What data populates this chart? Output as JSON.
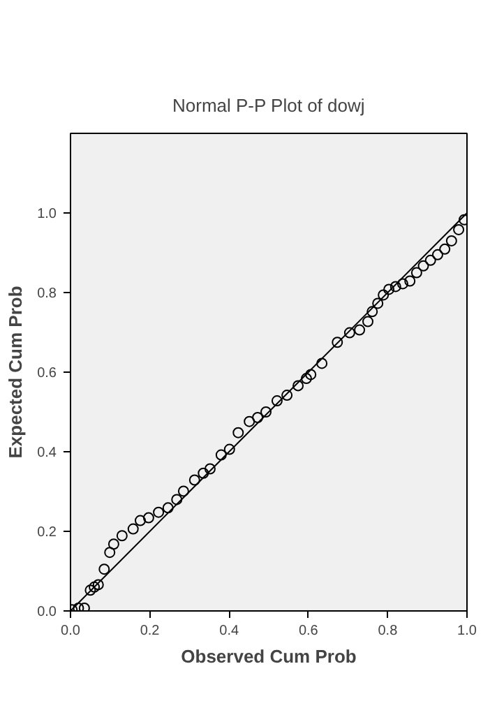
{
  "chart_data": {
    "type": "scatter",
    "title": "Normal P-P Plot of dowj",
    "xlabel": "Observed Cum Prob",
    "ylabel": "Expected Cum Prob",
    "xlim": [
      0,
      1
    ],
    "ylim": [
      0,
      1.2
    ],
    "xticks": [
      {
        "value": 0,
        "label": "0.0"
      },
      {
        "value": 0.2,
        "label": "0.2"
      },
      {
        "value": 0.4,
        "label": "0.4"
      },
      {
        "value": 0.6,
        "label": "0.6"
      },
      {
        "value": 0.8,
        "label": "0.8"
      },
      {
        "value": 1,
        "label": "1.0"
      }
    ],
    "yticks": [
      {
        "value": 0,
        "label": "0.0"
      },
      {
        "value": 0.2,
        "label": "0.2"
      },
      {
        "value": 0.4,
        "label": "0.4"
      },
      {
        "value": 0.6,
        "label": "0.6"
      },
      {
        "value": 0.8,
        "label": "0.8"
      },
      {
        "value": 1,
        "label": "1.0"
      }
    ],
    "grid": false,
    "series": [
      {
        "color": "#000000",
        "marker": "circle",
        "x": [
          0.004,
          0.02,
          0.035,
          0.05,
          0.06,
          0.07,
          0.085,
          0.099,
          0.109,
          0.13,
          0.158,
          0.176,
          0.197,
          0.222,
          0.246,
          0.268,
          0.285,
          0.313,
          0.335,
          0.352,
          0.38,
          0.401,
          0.423,
          0.451,
          0.472,
          0.493,
          0.521,
          0.546,
          0.574,
          0.595,
          0.606,
          0.634,
          0.673,
          0.704,
          0.729,
          0.75,
          0.761,
          0.775,
          0.789,
          0.803,
          0.82,
          0.838,
          0.856,
          0.873,
          0.89,
          0.908,
          0.926,
          0.944,
          0.961,
          0.979,
          0.993
        ],
        "values": [
          0.003,
          0.007,
          0.007,
          0.052,
          0.06,
          0.066,
          0.105,
          0.147,
          0.168,
          0.189,
          0.206,
          0.227,
          0.234,
          0.248,
          0.259,
          0.28,
          0.301,
          0.329,
          0.346,
          0.357,
          0.392,
          0.406,
          0.448,
          0.476,
          0.486,
          0.5,
          0.528,
          0.542,
          0.566,
          0.584,
          0.594,
          0.622,
          0.675,
          0.699,
          0.706,
          0.727,
          0.752,
          0.773,
          0.794,
          0.808,
          0.815,
          0.822,
          0.829,
          0.85,
          0.867,
          0.881,
          0.895,
          0.909,
          0.93,
          0.958,
          0.983
        ]
      },
      {
        "type": "line",
        "color": "#000000",
        "x": [
          0,
          1
        ],
        "values": [
          0,
          1
        ],
        "marker": "none"
      }
    ]
  }
}
